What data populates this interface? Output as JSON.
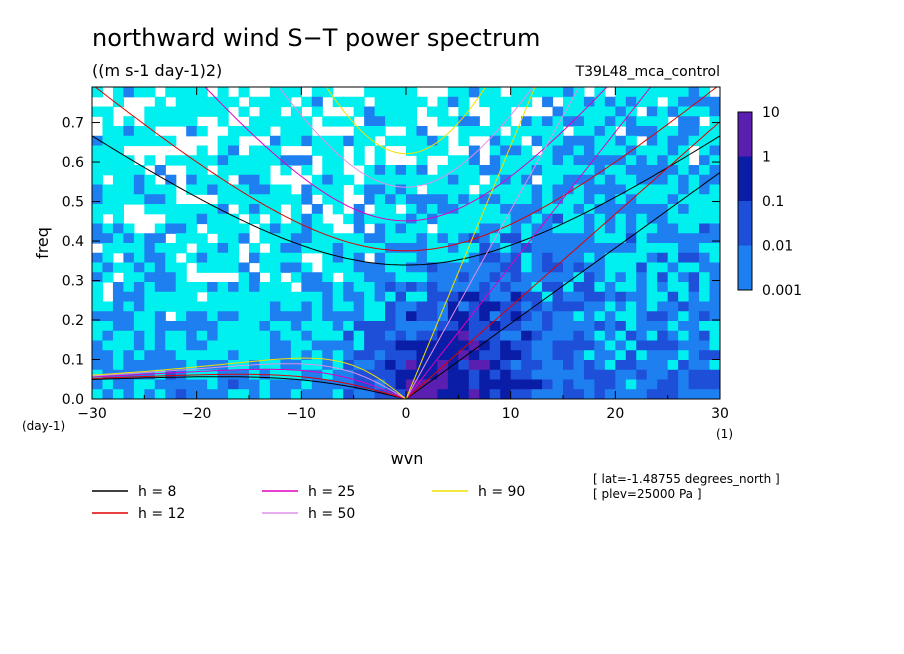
{
  "chart_data": {
    "type": "heatmap",
    "title": "northward wind S−T power spectrum",
    "subtitle": "((m s-1 day-1)2)",
    "experiment": "T39L48_mca_control",
    "xlabel": "wvn",
    "ylabel": "freq",
    "x_unit": "(1)",
    "y_unit": "(day-1)",
    "xlim": [
      -30,
      30
    ],
    "ylim": [
      0,
      0.79
    ],
    "x_ticks": [
      "-30",
      "-20",
      "-10",
      "0",
      "10",
      "20",
      "30"
    ],
    "y_ticks": [
      "0.0",
      "0.1",
      "0.2",
      "0.3",
      "0.4",
      "0.5",
      "0.6",
      "0.7"
    ],
    "colorbar": {
      "levels": [
        "10",
        "1",
        "0.1",
        "0.01",
        "0.001"
      ],
      "colors": [
        "#5a1fb0",
        "#0a1da6",
        "#1e4fd8",
        "#1e7ff0",
        "#00f0f0"
      ],
      "background": "#ffffff"
    },
    "legend": [
      {
        "label": "h =  8",
        "color": "#000000"
      },
      {
        "label": "h = 12",
        "color": "#e00000"
      },
      {
        "label": "h = 25",
        "color": "#e000c0"
      },
      {
        "label": "h = 50",
        "color": "#e090e8"
      },
      {
        "label": "h = 90",
        "color": "#f0e000"
      }
    ],
    "dispersion_curves": {
      "h_values": [
        8,
        12,
        25,
        50,
        90
      ],
      "colors": [
        "#000000",
        "#e00000",
        "#e000c0",
        "#e090e8",
        "#f0e000"
      ]
    },
    "annotations": [
      "[ lat=-1.48755 degrees_north ]",
      "[ plev=25000 Pa ]"
    ]
  }
}
